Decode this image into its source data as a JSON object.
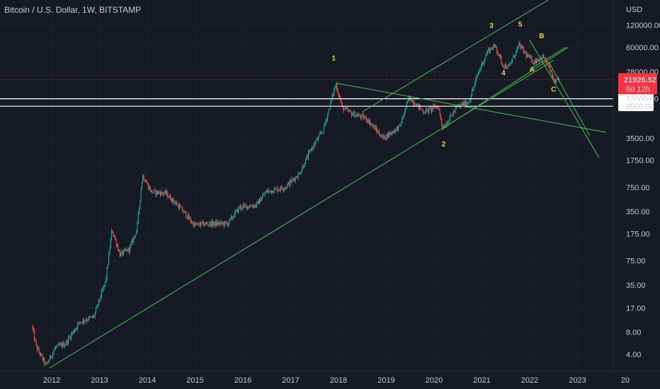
{
  "header": {
    "title": "Bitcoin / U.S. Dollar, 1W, BITSTAMP"
  },
  "price_scale": {
    "currency": "USD",
    "ticks": [
      "120000.00",
      "60000.00",
      "28000.00",
      "12000.00",
      "9500.00",
      "3500.00",
      "1750.00",
      "750.00",
      "350.00",
      "175.00",
      "75.00",
      "35.00",
      "17.00",
      "8.00",
      "4.00"
    ],
    "last_price": "21926.52",
    "countdown": "6d 12h",
    "highlighted": [
      "12000.00",
      "9500.00"
    ]
  },
  "colors": {
    "background": "#161a25",
    "up_candle": "#26a69a",
    "down_candle": "#ef5350",
    "trendline": "#4caf50",
    "wave_label": "#f2d14c",
    "last_price": "#f23645",
    "level_line": "#ffffff"
  },
  "chart_data": {
    "type": "candlestick",
    "title": "Bitcoin / U.S. Dollar, 1W, BITSTAMP",
    "y_scale": "log",
    "ylim": [
      2.5,
      250000
    ],
    "xlim": [
      2011.5,
      2024.0
    ],
    "x_ticks": [
      "2012",
      "2013",
      "2014",
      "2015",
      "2016",
      "2017",
      "2018",
      "2019",
      "2020",
      "2021",
      "2022",
      "2023",
      "20"
    ],
    "y_ticks": [
      120000,
      60000,
      28000,
      12000,
      9500,
      3500,
      1750,
      750,
      350,
      175,
      75,
      35,
      17,
      8,
      4
    ],
    "price_path": [
      {
        "t": 2011.6,
        "p": 10
      },
      {
        "t": 2011.7,
        "p": 5
      },
      {
        "t": 2011.9,
        "p": 2.8
      },
      {
        "t": 2012.1,
        "p": 5
      },
      {
        "t": 2012.3,
        "p": 5.5
      },
      {
        "t": 2012.6,
        "p": 11
      },
      {
        "t": 2012.9,
        "p": 13
      },
      {
        "t": 2013.15,
        "p": 40
      },
      {
        "t": 2013.28,
        "p": 200
      },
      {
        "t": 2013.45,
        "p": 90
      },
      {
        "t": 2013.65,
        "p": 110
      },
      {
        "t": 2013.8,
        "p": 200
      },
      {
        "t": 2013.92,
        "p": 1100
      },
      {
        "t": 2014.1,
        "p": 650
      },
      {
        "t": 2014.4,
        "p": 620
      },
      {
        "t": 2014.7,
        "p": 400
      },
      {
        "t": 2015.0,
        "p": 230
      },
      {
        "t": 2015.3,
        "p": 240
      },
      {
        "t": 2015.7,
        "p": 240
      },
      {
        "t": 2015.95,
        "p": 400
      },
      {
        "t": 2016.3,
        "p": 430
      },
      {
        "t": 2016.5,
        "p": 650
      },
      {
        "t": 2016.9,
        "p": 750
      },
      {
        "t": 2017.2,
        "p": 1150
      },
      {
        "t": 2017.45,
        "p": 2500
      },
      {
        "t": 2017.7,
        "p": 4500
      },
      {
        "t": 2017.96,
        "p": 19000
      },
      {
        "t": 2018.1,
        "p": 9000
      },
      {
        "t": 2018.3,
        "p": 7500
      },
      {
        "t": 2018.6,
        "p": 6500
      },
      {
        "t": 2018.95,
        "p": 3500
      },
      {
        "t": 2019.3,
        "p": 5000
      },
      {
        "t": 2019.5,
        "p": 12500
      },
      {
        "t": 2019.8,
        "p": 8000
      },
      {
        "t": 2020.1,
        "p": 9500
      },
      {
        "t": 2020.2,
        "p": 4800
      },
      {
        "t": 2020.5,
        "p": 9200
      },
      {
        "t": 2020.75,
        "p": 11000
      },
      {
        "t": 2020.95,
        "p": 28000
      },
      {
        "t": 2021.15,
        "p": 55000
      },
      {
        "t": 2021.3,
        "p": 63000
      },
      {
        "t": 2021.45,
        "p": 35000
      },
      {
        "t": 2021.58,
        "p": 32000
      },
      {
        "t": 2021.8,
        "p": 65000
      },
      {
        "t": 2021.95,
        "p": 47000
      },
      {
        "t": 2022.1,
        "p": 38000
      },
      {
        "t": 2022.3,
        "p": 45000
      },
      {
        "t": 2022.45,
        "p": 29000
      },
      {
        "t": 2022.55,
        "p": 19000
      },
      {
        "t": 2022.62,
        "p": 21926.52
      }
    ],
    "last_price": 21926.52,
    "horizontal_levels": [
      12000,
      9500
    ],
    "trendlines": [
      {
        "from": {
          "t": 2011.95,
          "p": 2.6
        },
        "to": {
          "t": 2022.5,
          "p": 40000
        }
      },
      {
        "from": {
          "t": 2017.96,
          "p": 19500
        },
        "to": {
          "t": 2023.6,
          "p": 4200
        }
      },
      {
        "from": {
          "t": 2018.5,
          "p": 8000
        },
        "to": {
          "t": 2022.6,
          "p": 320000
        }
      },
      {
        "from": {
          "t": 2020.2,
          "p": 4800
        },
        "to": {
          "t": 2022.8,
          "p": 60000
        }
      },
      {
        "from": {
          "t": 2022.0,
          "p": 75000
        },
        "to": {
          "t": 2023.45,
          "p": 1900
        }
      },
      {
        "from": {
          "t": 2022.0,
          "p": 30000
        },
        "to": {
          "t": 2022.75,
          "p": 60000
        }
      },
      {
        "from": {
          "t": 2022.4,
          "p": 38000
        },
        "to": {
          "t": 2023.25,
          "p": 3800
        }
      }
    ],
    "annotations": [
      {
        "label": "1",
        "t": 2017.9,
        "p": 40000
      },
      {
        "label": "2",
        "t": 2020.2,
        "p": 2700
      },
      {
        "label": "3",
        "t": 2021.2,
        "p": 110000
      },
      {
        "label": "4",
        "t": 2021.45,
        "p": 25000
      },
      {
        "label": "5",
        "t": 2021.8,
        "p": 115000
      },
      {
        "label": "A",
        "t": 2022.05,
        "p": 28000
      },
      {
        "label": "B",
        "t": 2022.25,
        "p": 80000
      },
      {
        "label": "C",
        "t": 2022.5,
        "p": 15000
      }
    ]
  }
}
